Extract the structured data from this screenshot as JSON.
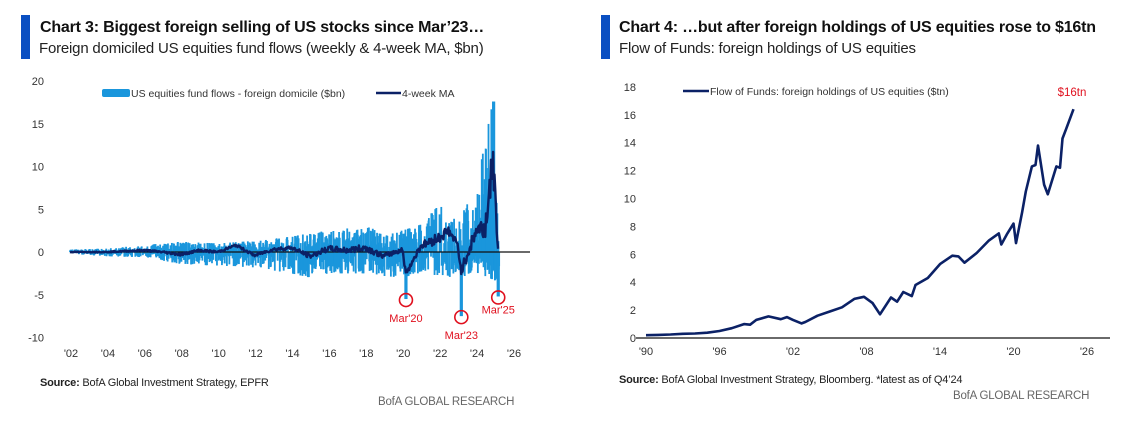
{
  "colors": {
    "accent": "#0a4fc2",
    "bar": "#1a96dc",
    "line": "#0b2166",
    "annotation": "#e0101e",
    "axis": "#111111"
  },
  "panels": [
    {
      "title": "Chart 3: Biggest foreign selling of US stocks since Mar’23…",
      "subtitle": "Foreign domiciled US equities fund flows (weekly & 4-week MA, $bn)",
      "source_label": "Source:",
      "source_text": " BofA Global Investment Strategy, EPFR",
      "brand": "BofA GLOBAL RESEARCH"
    },
    {
      "title": "Chart 4: …but after foreign holdings of US equities rose to $16tn",
      "subtitle": "Flow of Funds: foreign holdings of US equities",
      "source_label": "Source:",
      "source_text": " BofA Global Investment Strategy, Bloomberg. *latest as of Q4’24",
      "brand": "BofA GLOBAL RESEARCH"
    }
  ],
  "chart_data": [
    {
      "type": "bar",
      "title": "Chart 3: Biggest foreign selling of US stocks since Mar’23…",
      "subtitle": "Foreign domiciled US equities fund flows (weekly & 4-week MA, $bn)",
      "xlabel": "",
      "ylabel": "",
      "xlim": [
        2002,
        2026.8
      ],
      "ylim": [
        -10,
        20
      ],
      "yticks": [
        20,
        15,
        10,
        5,
        0,
        -5,
        -10
      ],
      "xticks": [
        2002,
        2004,
        2006,
        2008,
        2010,
        2012,
        2014,
        2016,
        2018,
        2020,
        2022,
        2024,
        2026
      ],
      "xtick_labels": [
        "'02",
        "'04",
        "'06",
        "'08",
        "'10",
        "'12",
        "'14",
        "'16",
        "'18",
        "'20",
        "'22",
        "'24",
        "'26"
      ],
      "legend": [
        "US equities fund flows - foreign domicile ($bn)",
        "4-week MA"
      ],
      "legend_position": "top",
      "series": [
        {
          "name": "US equities fund flows - foreign domicile ($bn)",
          "kind": "bar",
          "envelope": {
            "x": [
              2002,
              2004,
              2006,
              2008,
              2010,
              2012,
              2014,
              2015,
              2016,
              2018,
              2019,
              2020,
              2021,
              2022,
              2023,
              2024,
              2024.9,
              2025.2
            ],
            "upper": [
              0.3,
              0.4,
              0.8,
              1.2,
              1.0,
              1.3,
              1.8,
              2.2,
              2.5,
              3.0,
              2.3,
              2.5,
              3.2,
              5.5,
              3.5,
              7.5,
              17.5,
              5.0
            ],
            "lower": [
              -0.2,
              -0.5,
              -0.6,
              -1.4,
              -1.6,
              -1.8,
              -2.5,
              -3.0,
              -2.5,
              -2.5,
              -2.8,
              -3.0,
              -2.4,
              -2.8,
              -3.0,
              -2.5,
              -3.2,
              -3.5
            ]
          },
          "notable": [
            {
              "x": 2020.2,
              "y": -5.5,
              "label": "Mar'20"
            },
            {
              "x": 2023.2,
              "y": -7.5,
              "label": "Mar'23"
            },
            {
              "x": 2025.2,
              "y": -5.2,
              "label": "Mar'25"
            },
            {
              "x": 2024.95,
              "y": 17.6,
              "label": ""
            }
          ]
        },
        {
          "name": "4-week MA",
          "kind": "line",
          "x": [
            2002,
            2004,
            2006,
            2007,
            2008,
            2009,
            2010,
            2011,
            2012,
            2013,
            2014,
            2015,
            2016,
            2017,
            2018,
            2019,
            2020,
            2020.2,
            2021,
            2022,
            2022.5,
            2023,
            2023.2,
            2024,
            2024.5,
            2024.9,
            2025.0,
            2025.2
          ],
          "y": [
            0,
            0,
            0.2,
            0,
            -0.3,
            0.2,
            0,
            0.8,
            -0.4,
            0.3,
            0.5,
            -0.5,
            0.4,
            0.2,
            0.5,
            -0.5,
            0.3,
            -2.5,
            0.7,
            1.7,
            2.5,
            0.8,
            -2.2,
            2.5,
            3.0,
            10.5,
            7.5,
            0.2
          ]
        }
      ],
      "annotations": [
        "Mar'20",
        "Mar'23",
        "Mar'25"
      ]
    },
    {
      "type": "line",
      "title": "Chart 4: …but after foreign holdings of US equities rose to $16tn",
      "subtitle": "Flow of Funds: foreign holdings of US equities",
      "xlabel": "",
      "ylabel": "",
      "xlim": [
        1990,
        2026.8
      ],
      "ylim": [
        0,
        18
      ],
      "yticks": [
        18,
        16,
        14,
        12,
        10,
        8,
        6,
        4,
        2,
        0
      ],
      "xticks": [
        1990,
        1996,
        2002,
        2008,
        2014,
        2020,
        2026
      ],
      "xtick_labels": [
        "'90",
        "'96",
        "'02",
        "'08",
        "'14",
        "'20",
        "'26"
      ],
      "legend": [
        "Flow of Funds: foreign holdings of US equities ($tn)"
      ],
      "legend_position": "top-left",
      "series": [
        {
          "name": "Flow of Funds: foreign holdings of US equities ($tn)",
          "x": [
            1990,
            1991,
            1992,
            1993,
            1994,
            1995,
            1996,
            1997,
            1998,
            1998.5,
            1999,
            2000,
            2001,
            2001.5,
            2002,
            2002.7,
            2003,
            2004,
            2005,
            2006,
            2007,
            2007.8,
            2008.5,
            2009.1,
            2010,
            2010.5,
            2011,
            2011.7,
            2012,
            2013,
            2014,
            2015,
            2015.5,
            2016,
            2017,
            2018,
            2018.8,
            2019,
            2019.5,
            2020,
            2020.2,
            2020.7,
            2021,
            2021.5,
            2021.8,
            2022,
            2022.5,
            2022.8,
            2023.5,
            2023.8,
            2024,
            2024.3,
            2024.9
          ],
          "y": [
            0.2,
            0.22,
            0.25,
            0.3,
            0.32,
            0.38,
            0.5,
            0.7,
            1.0,
            0.95,
            1.3,
            1.55,
            1.35,
            1.5,
            1.3,
            1.05,
            1.15,
            1.6,
            1.9,
            2.2,
            2.8,
            2.95,
            2.5,
            1.7,
            2.9,
            2.6,
            3.3,
            3.0,
            3.8,
            4.3,
            5.3,
            5.9,
            5.85,
            5.4,
            6.1,
            7.0,
            7.5,
            6.7,
            7.5,
            8.2,
            6.8,
            9.0,
            10.5,
            12.3,
            12.4,
            13.8,
            11.0,
            10.3,
            12.3,
            12.2,
            14.3,
            15.0,
            16.4
          ]
        }
      ],
      "annotations": [
        "$16tn"
      ]
    }
  ]
}
